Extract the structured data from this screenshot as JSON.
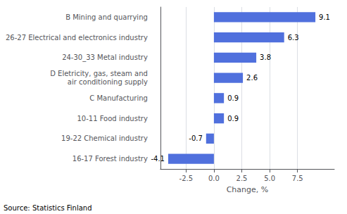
{
  "chart_data": {
    "type": "bar",
    "orientation": "horizontal",
    "categories": [
      "16-17 Forest industry",
      "19-22 Chemical industry",
      "10-11 Food industry",
      "C Manufacturing",
      "D Eletricity, gas, steam and\nair conditioning supply",
      "24-30_33 Metal industry",
      "26-27 Electrical and electronics industry",
      "B Mining and quarrying"
    ],
    "values": [
      -4.1,
      -0.7,
      0.9,
      0.9,
      2.6,
      3.8,
      6.3,
      9.1
    ],
    "xlabel": "Change, %",
    "annotations": [
      "Source: Statistics Finland"
    ],
    "xlim": [
      -4.8,
      10.8
    ],
    "xticks": [
      -2.5,
      {
        "value": 0,
        "label": "0.0"
      },
      2.5,
      {
        "value": 5,
        "label": "5.0"
      },
      7.5
    ],
    "grid": true,
    "data_labels": true
  }
}
